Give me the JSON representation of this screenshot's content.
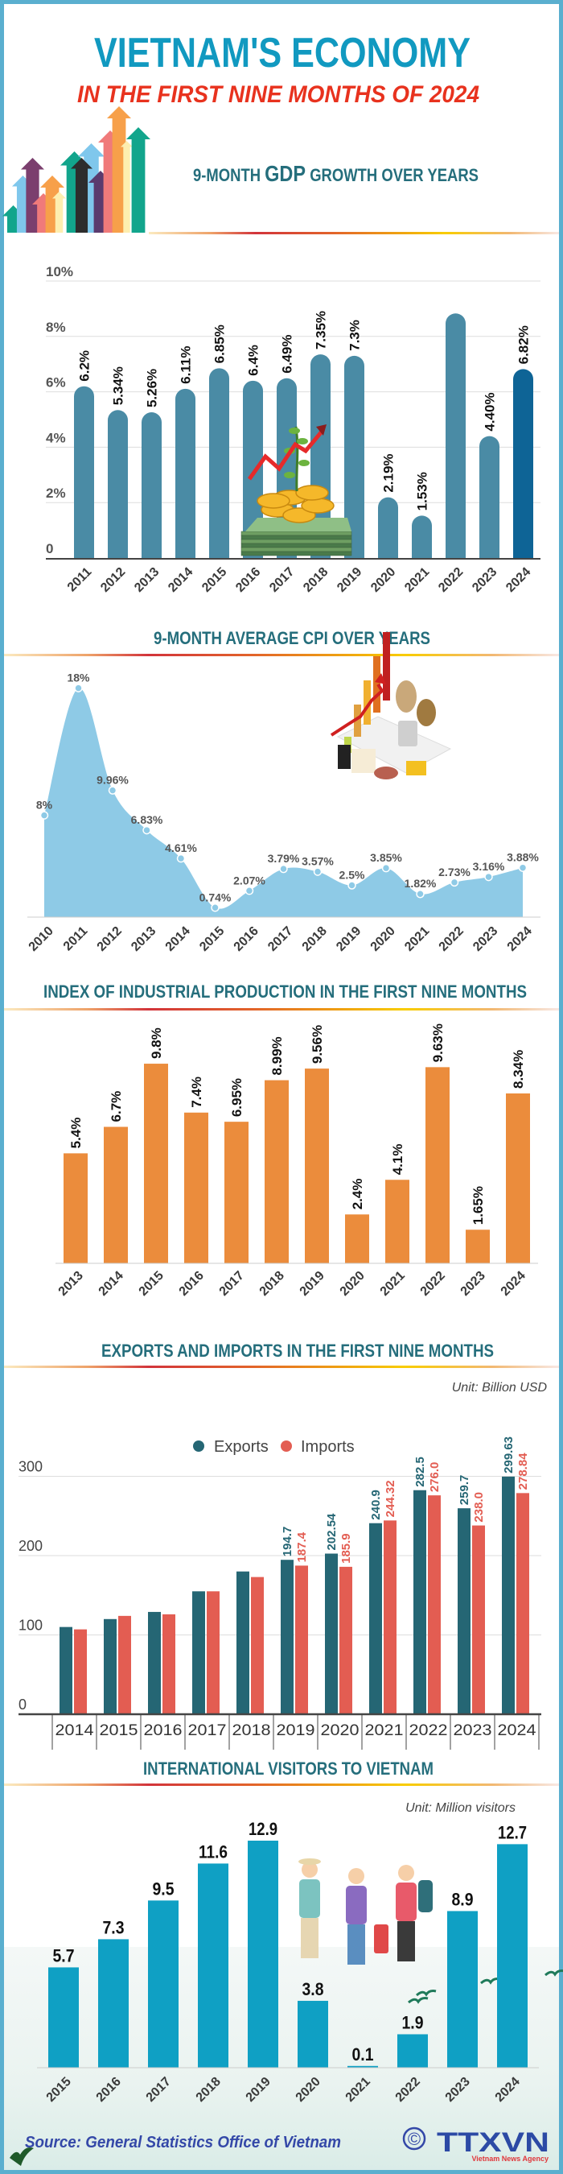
{
  "header": {
    "title": "VIETNAM'S ECONOMY",
    "subtitle": "IN THE FIRST NINE MONTHS OF 2024"
  },
  "colors": {
    "frame": "#5aafcf",
    "title": "#1199c0",
    "subtitle": "#e8321e",
    "section_heading": "#256e7c",
    "gdp_bar": "#4a8ba5",
    "gdp_bar_highlight": "#0e6496",
    "cpi_area": "#8ecae6",
    "iip_bar": "#eb8c3c",
    "exports": "#256674",
    "imports": "#e35d52",
    "visitors_bar": "#0fa0c4",
    "source": "#3448a8"
  },
  "icons": [
    "growth-arrows-illustration",
    "money-plant-illustration",
    "commodities-illustration",
    "tourists-illustration",
    "bird-icon",
    "copyright-icon"
  ],
  "chart_data": [
    {
      "id": "gdp",
      "type": "bar",
      "title_parts": [
        "9-MONTH ",
        "GDP",
        " GROWTH OVER YEARS"
      ],
      "categories": [
        "2011",
        "2012",
        "2013",
        "2014",
        "2015",
        "2016",
        "2017",
        "2018",
        "2019",
        "2020",
        "2021",
        "2022",
        "2023",
        "2024"
      ],
      "values": [
        6.2,
        5.34,
        5.26,
        6.11,
        6.85,
        6.4,
        6.49,
        7.35,
        7.3,
        2.19,
        1.53,
        8.83,
        4.4,
        6.82
      ],
      "labels": [
        "6.2%",
        "5.34%",
        "5.26%",
        "6.11%",
        "6.85%",
        "6.4%",
        "6.49%",
        "7.35%",
        "7.3%",
        "2.19%",
        "1.53%",
        "",
        "4.40%",
        "6.82%"
      ],
      "highlight": "2024",
      "yticks": [
        "0",
        "2%",
        "4%",
        "6%",
        "8%",
        "10%"
      ],
      "ylim": [
        0,
        10
      ],
      "grid": true
    },
    {
      "id": "cpi",
      "type": "area",
      "title": "9-MONTH AVERAGE CPI OVER YEARS",
      "categories": [
        "2010",
        "2011",
        "2012",
        "2013",
        "2014",
        "2015",
        "2016",
        "2017",
        "2018",
        "2019",
        "2020",
        "2021",
        "2022",
        "2023",
        "2024"
      ],
      "values": [
        8,
        18,
        9.96,
        6.83,
        4.61,
        0.74,
        2.07,
        3.79,
        3.57,
        2.5,
        3.85,
        1.82,
        2.73,
        3.16,
        3.88
      ],
      "labels": [
        "8%",
        "18%",
        "9.96%",
        "6.83%",
        "4.61%",
        "0.74%",
        "2.07%",
        "3.79%",
        "3.57%",
        "2.5%",
        "3.85%",
        "1.82%",
        "2.73%",
        "3.16%",
        "3.88%"
      ],
      "grid": false
    },
    {
      "id": "iip",
      "type": "bar",
      "title": "INDEX OF INDUSTRIAL PRODUCTION IN THE FIRST NINE MONTHS",
      "categories": [
        "2013",
        "2014",
        "2015",
        "2016",
        "2017",
        "2018",
        "2019",
        "2020",
        "2021",
        "2022",
        "2023",
        "2024"
      ],
      "values": [
        5.4,
        6.7,
        9.8,
        7.4,
        6.95,
        8.99,
        9.56,
        2.4,
        4.1,
        9.63,
        1.65,
        8.34
      ],
      "labels": [
        "5.4%",
        "6.7%",
        "9.8%",
        "7.4%",
        "6.95%",
        "8.99%",
        "9.56%",
        "2.4%",
        "4.1%",
        "9.63%",
        "1.65%",
        "8.34%"
      ],
      "grid": false
    },
    {
      "id": "trade",
      "type": "bar",
      "title": "EXPORTS AND IMPORTS IN THE FIRST NINE MONTHS",
      "unit": "Unit: Billion USD",
      "categories": [
        "2014",
        "2015",
        "2016",
        "2017",
        "2018",
        "2019",
        "2020",
        "2021",
        "2022",
        "2023",
        "2024"
      ],
      "series": [
        {
          "name": "Exports",
          "values": [
            110,
            120,
            129,
            155,
            180,
            194.7,
            202.54,
            240.9,
            282.5,
            259.7,
            299.63
          ],
          "labels": [
            "",
            "",
            "",
            "",
            "",
            "194.7",
            "202.54",
            "240.9",
            "282.5",
            "259.7",
            "299.63"
          ]
        },
        {
          "name": "Imports",
          "values": [
            107,
            124,
            126,
            155,
            173,
            187.4,
            185.9,
            244.32,
            276.0,
            238.0,
            278.84
          ],
          "labels": [
            "",
            "",
            "",
            "",
            "",
            "187.4",
            "185.9",
            "244.32",
            "276.0",
            "238.0",
            "278.84"
          ]
        }
      ],
      "yticks": [
        "0",
        "100",
        "200",
        "300"
      ],
      "ylim": [
        0,
        300
      ],
      "legend": "top-center",
      "grid": true
    },
    {
      "id": "visitors",
      "type": "bar",
      "title": "INTERNATIONAL VISITORS TO VIETNAM",
      "unit": "Unit: Million visitors",
      "categories": [
        "2015",
        "2016",
        "2017",
        "2018",
        "2019",
        "2020",
        "2021",
        "2022",
        "2023",
        "2024"
      ],
      "values": [
        5.7,
        7.3,
        9.5,
        11.6,
        12.9,
        3.8,
        0.1,
        1.9,
        8.9,
        12.7
      ],
      "labels": [
        "5.7",
        "7.3",
        "9.5",
        "11.6",
        "12.9",
        "3.8",
        "0.1",
        "1.9",
        "8.9",
        "12.7"
      ],
      "grid": false
    }
  ],
  "footer": {
    "source": "Source: General Statistics Office of Vietnam",
    "logo_text": "TTXVN",
    "logo_subtext": "Vietnam News Agency",
    "copyright": "©"
  }
}
